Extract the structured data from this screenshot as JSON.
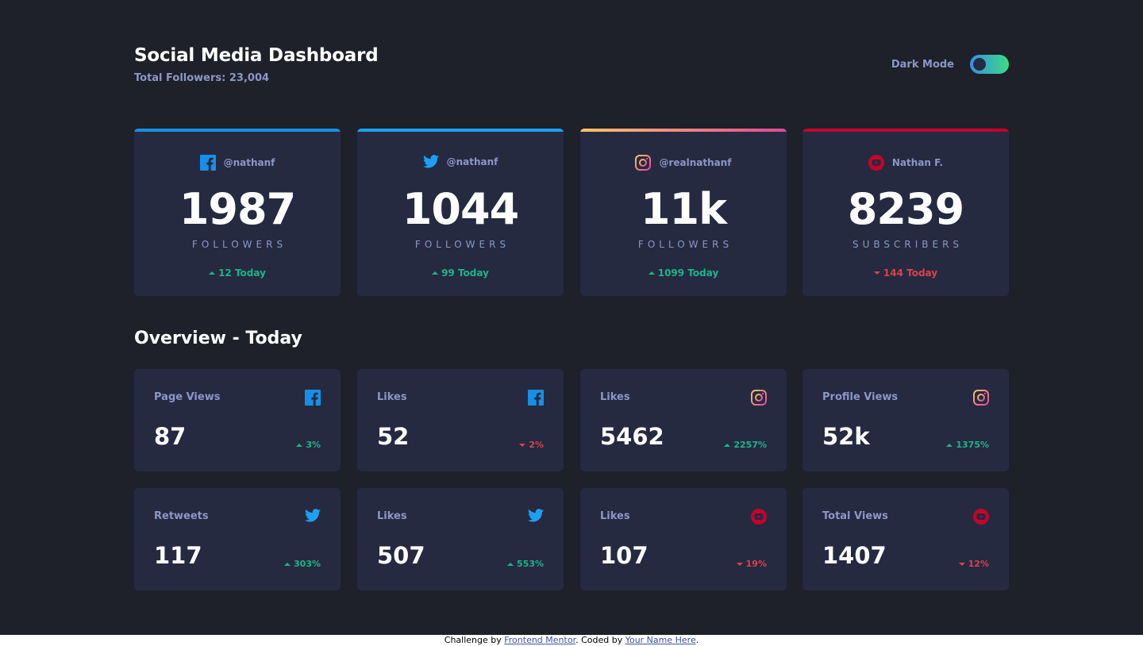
{
  "header": {
    "title": "Social Media Dashboard",
    "total_followers": "Total Followers: 23,004",
    "dark_mode_label": "Dark Mode",
    "dark_mode_on": true
  },
  "colors": {
    "background": "#1e202a",
    "card": "#252a41",
    "muted_text": "#8b97c6",
    "up": "#1db489",
    "down": "#dc414c",
    "facebook": "#178fe6",
    "twitter": "#1ca0f2",
    "instagram_from": "#fdc468",
    "instagram_to": "#df4996",
    "youtube": "#c4032a"
  },
  "cards": [
    {
      "network": "facebook",
      "icon": "facebook-icon",
      "handle": "@nathanf",
      "count": "1987",
      "unit": "FOLLOWERS",
      "today": "12 Today",
      "trend": "up"
    },
    {
      "network": "twitter",
      "icon": "twitter-icon",
      "handle": "@nathanf",
      "count": "1044",
      "unit": "FOLLOWERS",
      "today": "99 Today",
      "trend": "up"
    },
    {
      "network": "instagram",
      "icon": "instagram-icon",
      "handle": "@realnathanf",
      "count": "11k",
      "unit": "FOLLOWERS",
      "today": "1099 Today",
      "trend": "up"
    },
    {
      "network": "youtube",
      "icon": "youtube-icon",
      "handle": "Nathan F.",
      "count": "8239",
      "unit": "SUBSCRIBERS",
      "today": "144 Today",
      "trend": "down"
    }
  ],
  "overview": {
    "title": "Overview - Today",
    "items": [
      {
        "label": "Page Views",
        "network": "facebook",
        "icon": "facebook-icon",
        "value": "87",
        "percent": "3%",
        "trend": "up"
      },
      {
        "label": "Likes",
        "network": "facebook",
        "icon": "facebook-icon",
        "value": "52",
        "percent": "2%",
        "trend": "down"
      },
      {
        "label": "Likes",
        "network": "instagram",
        "icon": "instagram-icon",
        "value": "5462",
        "percent": "2257%",
        "trend": "up"
      },
      {
        "label": "Profile Views",
        "network": "instagram",
        "icon": "instagram-icon",
        "value": "52k",
        "percent": "1375%",
        "trend": "up"
      },
      {
        "label": "Retweets",
        "network": "twitter",
        "icon": "twitter-icon",
        "value": "117",
        "percent": "303%",
        "trend": "up"
      },
      {
        "label": "Likes",
        "network": "twitter",
        "icon": "twitter-icon",
        "value": "507",
        "percent": "553%",
        "trend": "up"
      },
      {
        "label": "Likes",
        "network": "youtube",
        "icon": "youtube-icon",
        "value": "107",
        "percent": "19%",
        "trend": "down"
      },
      {
        "label": "Total Views",
        "network": "youtube",
        "icon": "youtube-icon",
        "value": "1407",
        "percent": "12%",
        "trend": "down"
      }
    ]
  },
  "attribution": {
    "prefix": "Challenge by",
    "link1": "Frontend Mentor",
    "middle": ". Coded by",
    "link2": "Your Name Here",
    "suffix": "."
  }
}
